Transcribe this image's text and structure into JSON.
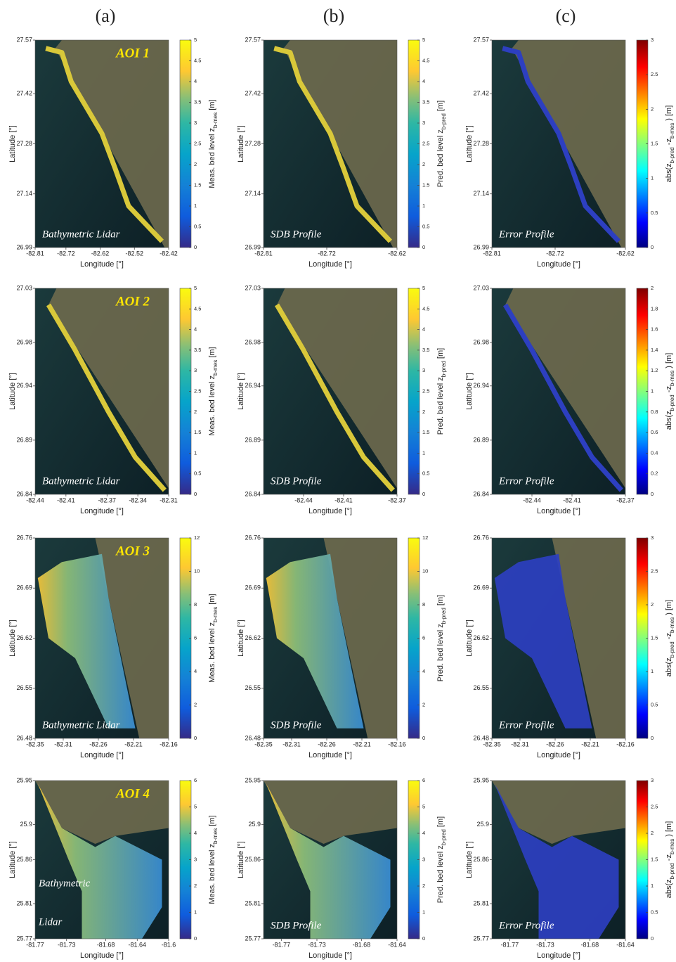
{
  "columns": [
    "(a)",
    "(b)",
    "(c)"
  ],
  "rows": [
    {
      "aoi": "AOI 1",
      "ylim": [
        26.99,
        27.57
      ],
      "yticks": [
        26.99,
        27.14,
        27.28,
        27.42,
        27.57
      ],
      "panels": [
        {
          "xlim": [
            -82.81,
            -82.42
          ],
          "xticks": [
            -82.81,
            -82.72,
            -82.62,
            -82.52,
            -82.42
          ],
          "x_label": "Longitude [°]",
          "y_label": "Latitude [°]",
          "overlay": "Bathymetric Lidar",
          "colorbar": {
            "label": [
              "Meas. bed level z",
              "b-mes",
              " [m]"
            ],
            "ticks": [
              0,
              0.5,
              1,
              1.5,
              2,
              2.5,
              3,
              3.5,
              4,
              4.5,
              5
            ]
          }
        },
        {
          "xlim": [
            -82.81,
            -82.62
          ],
          "xticks": [
            -82.81,
            -82.72,
            -82.62
          ],
          "x_label": "Longitude [°]",
          "y_label": "Latitude [°]",
          "overlay": "SDB Profile",
          "colorbar": {
            "label": [
              "Pred. bed level z",
              "b-pred",
              " [m]"
            ],
            "ticks": [
              0,
              0.5,
              1,
              1.5,
              2,
              2.5,
              3,
              3.5,
              4,
              4.5,
              5
            ]
          }
        },
        {
          "xlim": [
            -82.81,
            -82.62
          ],
          "xticks": [
            -82.81,
            -82.72,
            -82.62
          ],
          "x_label": "Longitude [°]",
          "y_label": "Latitude [°]",
          "overlay": "Error Profile",
          "colorbar": {
            "label": [
              "abs(z",
              "b-pred",
              " -z",
              "b-mes",
              " ) [m]"
            ],
            "ticks": [
              0,
              0.5,
              1,
              1.5,
              2,
              2.5,
              3
            ]
          }
        }
      ]
    },
    {
      "aoi": "AOI 2",
      "ylim": [
        26.84,
        27.03
      ],
      "yticks": [
        26.84,
        26.89,
        26.94,
        26.98,
        27.03
      ],
      "panels": [
        {
          "xlim": [
            -82.44,
            -82.31
          ],
          "xticks": [
            -82.44,
            -82.41,
            -82.37,
            -82.34,
            -82.31
          ],
          "x_label": "Longitude [°]",
          "y_label": "Latitude [°]",
          "overlay": "Bathymetric Lidar",
          "colorbar": {
            "label": [
              "Meas. bed level z",
              "b-mes",
              " [m]"
            ],
            "ticks": [
              0,
              0.5,
              1,
              1.5,
              2,
              2.5,
              3,
              3.5,
              4,
              4.5,
              5
            ]
          }
        },
        {
          "xlim": [
            -82.47,
            -82.37
          ],
          "xticks": [
            -82.44,
            -82.41,
            -82.37
          ],
          "x_label": "Longitude [°]",
          "y_label": "Latitude [°]",
          "overlay": "SDB Profile",
          "colorbar": {
            "label": [
              "Pred. bed level z",
              "b-pred",
              " [m]"
            ],
            "ticks": [
              0,
              0.5,
              1,
              1.5,
              2,
              2.5,
              3,
              3.5,
              4,
              4.5,
              5
            ]
          }
        },
        {
          "xlim": [
            -82.47,
            -82.37
          ],
          "xticks": [
            -82.44,
            -82.41,
            -82.37
          ],
          "x_label": "Longitude [°]",
          "y_label": "Latitude [°]",
          "overlay": "Error Profile",
          "colorbar": {
            "label": [
              "abs(z",
              "b-pred",
              " -z",
              "b-mes",
              " ) [m]"
            ],
            "ticks": [
              0,
              0.2,
              0.4,
              0.6,
              0.8,
              1,
              1.2,
              1.4,
              1.6,
              1.8,
              2
            ]
          }
        }
      ]
    },
    {
      "aoi": "AOI 3",
      "ylim": [
        26.48,
        26.76
      ],
      "yticks": [
        26.48,
        26.55,
        26.62,
        26.69,
        26.76
      ],
      "panels": [
        {
          "xlim": [
            -82.35,
            -82.16
          ],
          "xticks": [
            -82.35,
            -82.31,
            -82.26,
            -82.21,
            -82.16
          ],
          "x_label": "Longitude [°]",
          "y_label": "Latitude [°]",
          "overlay": "Bathymetric Lidar",
          "colorbar": {
            "label": [
              "Meas. bed level z",
              "b-mes",
              " [m]"
            ],
            "ticks": [
              0,
              2,
              4,
              6,
              8,
              10,
              12
            ]
          }
        },
        {
          "xlim": [
            -82.35,
            -82.16
          ],
          "xticks": [
            -82.35,
            -82.31,
            -82.26,
            -82.21,
            -82.16
          ],
          "x_label": "Longitude [°]",
          "y_label": "Latitude [°]",
          "overlay": "SDB Profile",
          "colorbar": {
            "label": [
              "Pred. bed level z",
              "b-pred",
              " [m]"
            ],
            "ticks": [
              0,
              2,
              4,
              6,
              8,
              10,
              12
            ]
          }
        },
        {
          "xlim": [
            -82.35,
            -82.16
          ],
          "xticks": [
            -82.35,
            -82.31,
            -82.26,
            -82.21,
            -82.16
          ],
          "x_label": "Longitude [°]",
          "y_label": "Latitude [°]",
          "overlay": "Error Profile",
          "colorbar": {
            "label": [
              "abs(z",
              "b-pred",
              " -z",
              "b-mes",
              " ) [m]"
            ],
            "ticks": [
              0,
              0.5,
              1,
              1.5,
              2,
              2.5,
              3
            ]
          }
        }
      ]
    },
    {
      "aoi": "AOI 4",
      "ylim": [
        25.77,
        25.95
      ],
      "yticks": [
        25.77,
        25.81,
        25.86,
        25.9,
        25.95
      ],
      "panels": [
        {
          "xlim": [
            -81.77,
            -81.6
          ],
          "xticks": [
            -81.77,
            -81.73,
            -81.68,
            -81.64,
            -81.6
          ],
          "x_label": "Longitude [°]",
          "y_label": "Latitude [°]",
          "overlay": [
            "Bathymetric",
            "Lidar"
          ],
          "colorbar": {
            "label": [
              "Meas. bed level z",
              "b-mes",
              " [m]"
            ],
            "ticks": [
              0,
              1,
              2,
              3,
              4,
              5,
              6
            ]
          }
        },
        {
          "xlim": [
            -81.79,
            -81.64
          ],
          "xticks": [
            -81.77,
            -81.73,
            -81.68,
            -81.64
          ],
          "x_label": "Longitude [°]",
          "y_label": "Latitude [°]",
          "overlay": "SDB Profile",
          "colorbar": {
            "label": [
              "Pred. bed level z",
              "b-pred",
              " [m]"
            ],
            "ticks": [
              0,
              1,
              2,
              3,
              4,
              5,
              6
            ]
          }
        },
        {
          "xlim": [
            -81.79,
            -81.64
          ],
          "xticks": [
            -81.77,
            -81.73,
            -81.68,
            -81.64
          ],
          "x_label": "Longitude [°]",
          "y_label": "Latitude [°]",
          "overlay": "Error Profile",
          "colorbar": {
            "label": [
              "abs(z",
              "b-pred",
              " -z",
              "b-mes",
              " ) [m]"
            ],
            "ticks": [
              0,
              0.5,
              1,
              1.5,
              2,
              2.5,
              3
            ]
          }
        }
      ]
    }
  ]
}
